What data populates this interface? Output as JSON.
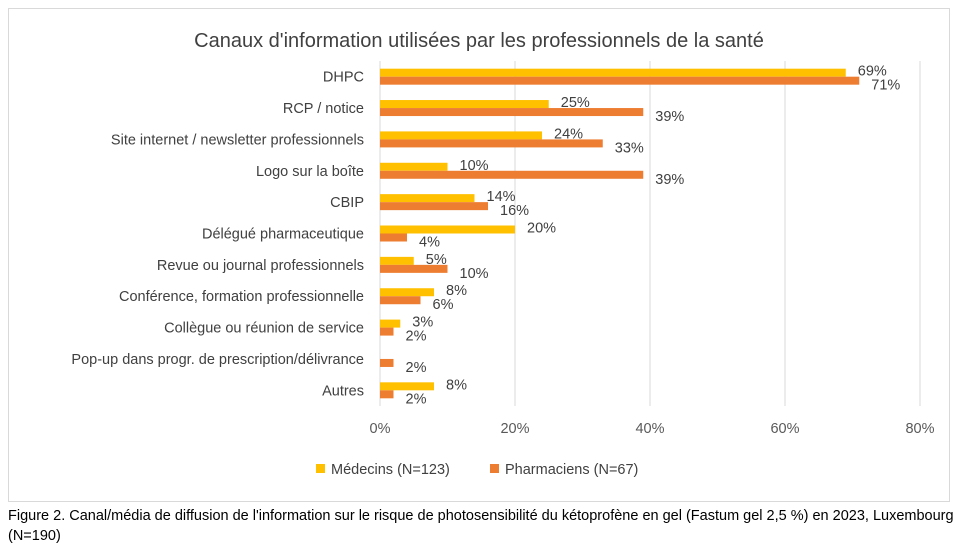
{
  "chart_data": {
    "type": "bar",
    "orientation": "horizontal",
    "title": "Canaux d'information utilisées par les professionnels de la santé",
    "categories": [
      "DHPC",
      "RCP / notice",
      "Site internet / newsletter professionnels",
      "Logo sur la boîte",
      "CBIP",
      "Délégué pharmaceutique",
      "Revue ou journal professionnels",
      "Conférence, formation professionnelle",
      "Collègue ou réunion de service",
      "Pop-up dans progr. de prescription/délivrance",
      "Autres"
    ],
    "series": [
      {
        "name": "Médecins (N=123)",
        "color": "#FFC000",
        "values": [
          69,
          25,
          24,
          10,
          14,
          20,
          5,
          8,
          3,
          0,
          8
        ],
        "labels": [
          "69%",
          "25%",
          "24%",
          "10%",
          "14%",
          "20%",
          "5%",
          "8%",
          "3%",
          "",
          "8%"
        ]
      },
      {
        "name": "Pharmaciens (N=67)",
        "color": "#ED7D31",
        "values": [
          71,
          39,
          33,
          39,
          16,
          4,
          10,
          6,
          2,
          2,
          2
        ],
        "labels": [
          "71%",
          "39%",
          "33%",
          "39%",
          "16%",
          "4%",
          "10%",
          "6%",
          "2%",
          "2%",
          "2%"
        ]
      }
    ],
    "xlim": [
      0,
      80
    ],
    "xticks": [
      0,
      20,
      40,
      60,
      80
    ],
    "xtick_labels": [
      "0%",
      "20%",
      "40%",
      "60%",
      "80%"
    ],
    "grid": true,
    "legend_position": "bottom"
  },
  "caption": "Figure 2. Canal/média de diffusion de l'information sur le risque de photosensibilité du kétoprofène en gel (Fastum gel 2,5 %) en 2023, Luxembourg (N=190)"
}
